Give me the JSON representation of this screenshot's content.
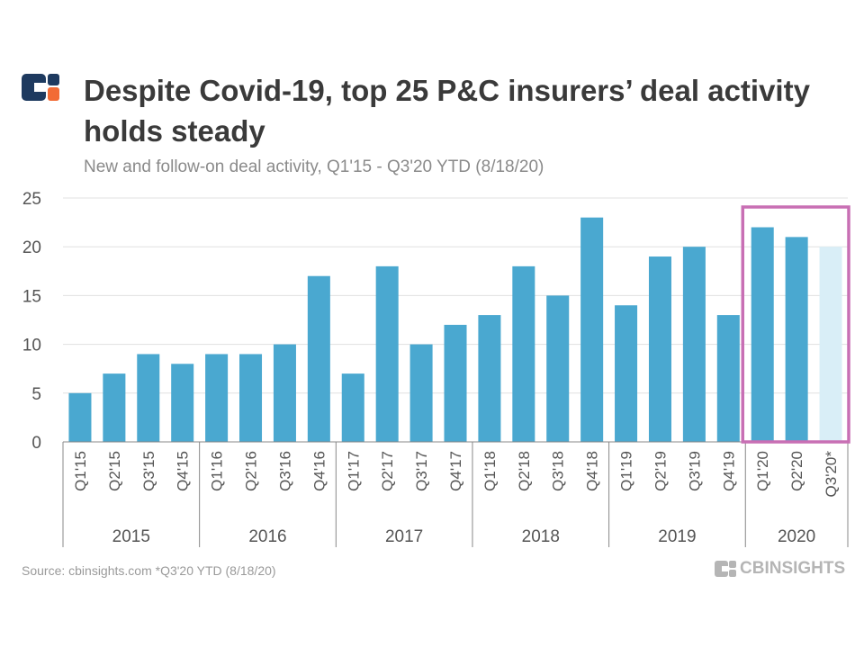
{
  "header": {
    "title": "Despite Covid-19, top 25 P&C insurers’ deal activity holds steady",
    "subtitle": "New and follow-on deal activity, Q1'15 - Q3'20 YTD (8/18/20)"
  },
  "footer": {
    "source": "Source: cbinsights.com *Q3'20 YTD (8/18/20)",
    "brand": "CBINSIGHTS"
  },
  "colors": {
    "bar": "#4aa8d0",
    "bar_ytd": "#d9eef7",
    "highlight_box": "#c86fb4",
    "axis_text": "#555555",
    "grid": "#e0e0e0",
    "logo_navy": "#1e3a5f",
    "logo_orange": "#f26b35"
  },
  "icons": {
    "logo": "cb-insights-logo-icon",
    "brand": "cb-insights-wordmark-icon"
  },
  "chart_data": {
    "type": "bar",
    "categories": [
      "Q1'15",
      "Q2'15",
      "Q3'15",
      "Q4'15",
      "Q1'16",
      "Q2'16",
      "Q3'16",
      "Q4'16",
      "Q1'17",
      "Q2'17",
      "Q3'17",
      "Q4'17",
      "Q1'18",
      "Q2'18",
      "Q3'18",
      "Q4'18",
      "Q1'19",
      "Q2'19",
      "Q3'19",
      "Q4'19",
      "Q1'20",
      "Q2'20",
      "Q3'20*"
    ],
    "values": [
      5,
      7,
      9,
      8,
      9,
      9,
      10,
      17,
      7,
      18,
      10,
      12,
      13,
      18,
      15,
      23,
      14,
      19,
      20,
      13,
      22,
      21,
      20
    ],
    "year_groups": [
      {
        "label": "2015",
        "count": 4
      },
      {
        "label": "2016",
        "count": 4
      },
      {
        "label": "2017",
        "count": 4
      },
      {
        "label": "2018",
        "count": 4
      },
      {
        "label": "2019",
        "count": 4
      },
      {
        "label": "2020",
        "count": 3
      }
    ],
    "ylim": [
      0,
      25
    ],
    "yticks": [
      0,
      5,
      10,
      15,
      20,
      25
    ],
    "ytd_categories": [
      "Q3'20*"
    ],
    "highlighted_categories": [
      "Q1'20",
      "Q2'20",
      "Q3'20*"
    ],
    "grid": true
  }
}
